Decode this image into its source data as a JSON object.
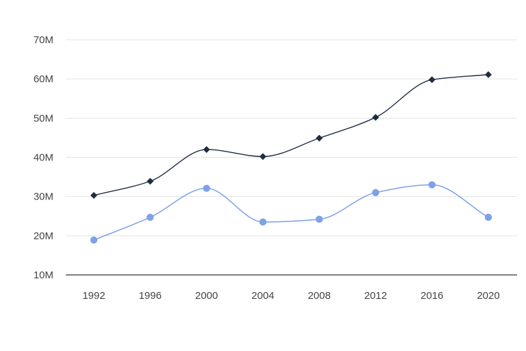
{
  "chart_data": {
    "type": "line",
    "title": "",
    "xlabel": "",
    "ylabel": "",
    "categories": [
      "1992",
      "1996",
      "2000",
      "2004",
      "2008",
      "2012",
      "2016",
      "2020"
    ],
    "ylim": [
      10,
      70
    ],
    "y_ticks": [
      10,
      20,
      30,
      40,
      50,
      60,
      70
    ],
    "y_tick_labels": [
      "10M",
      "20M",
      "30M",
      "40M",
      "50M",
      "60M",
      "70M"
    ],
    "grid": "horizontal",
    "legend": "none",
    "smooth": true,
    "series": [
      {
        "values": [
          30.3,
          33.9,
          42.0,
          40.2,
          44.9,
          50.2,
          59.8,
          61.1
        ],
        "color": "#1f2d42",
        "marker": "diamond"
      },
      {
        "values": [
          18.9,
          24.7,
          32.1,
          23.5,
          24.2,
          31.0,
          33.0,
          24.7
        ],
        "color": "#7ea1e8",
        "marker": "circle"
      }
    ]
  }
}
